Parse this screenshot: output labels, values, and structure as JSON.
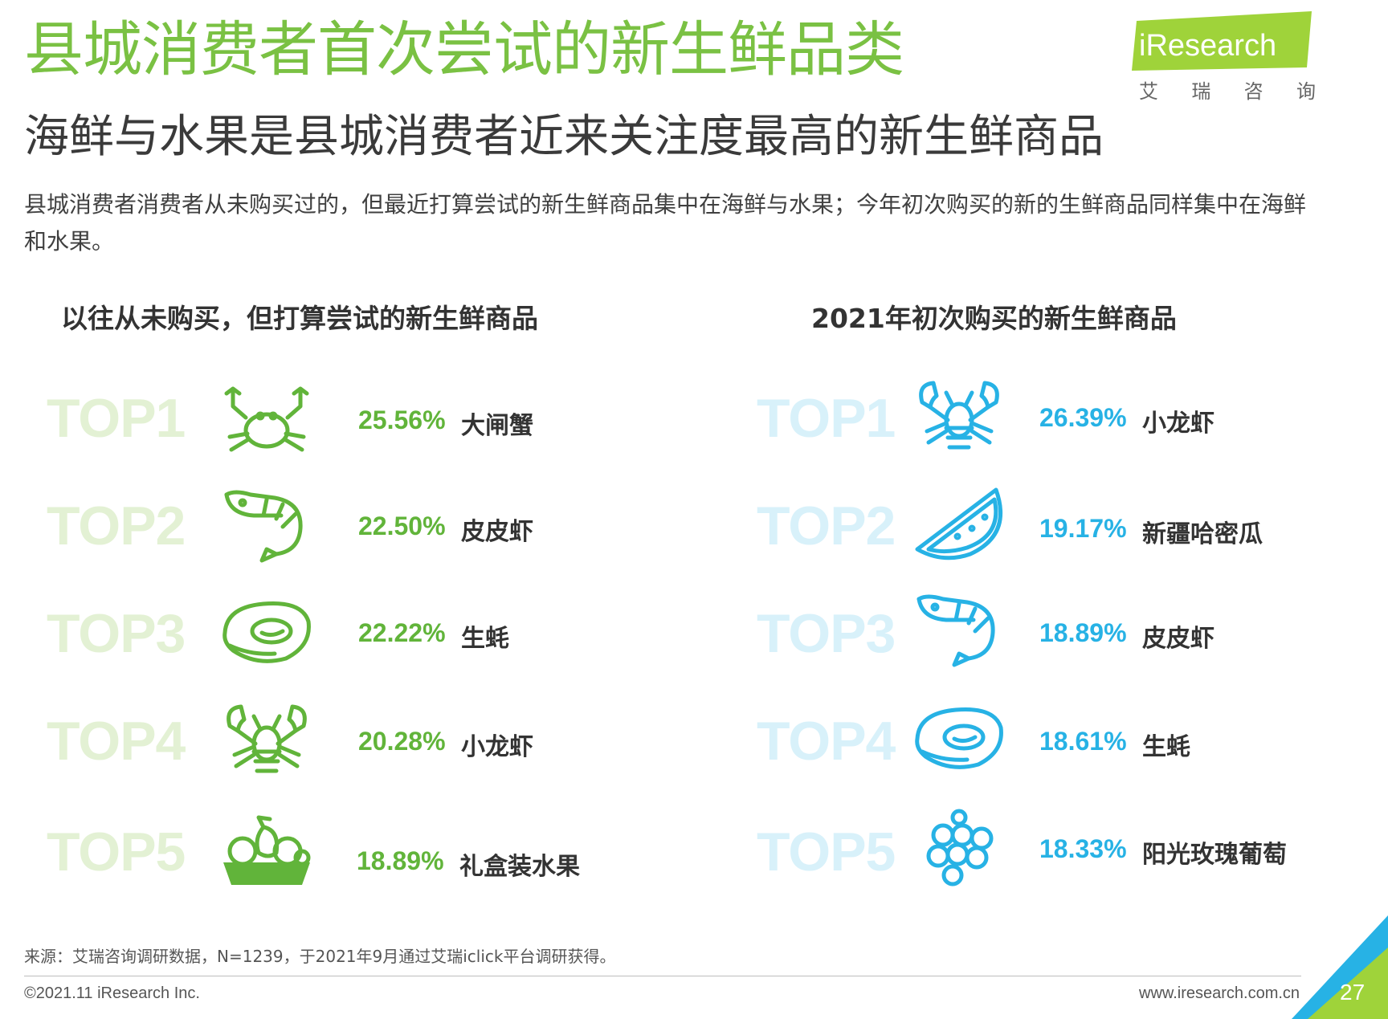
{
  "header": {
    "title": "县城消费者首次尝试的新生鲜品类",
    "subtitle": "海鲜与水果是县城消费者近来关注度最高的新生鲜商品",
    "description": "县城消费者消费者从未购买过的，但最近打算尝试的新生鲜商品集中在海鲜与水果；今年初次购买的新的生鲜商品同样集中在海鲜和水果。"
  },
  "logo": {
    "wordmark": "iResearch",
    "cn_chars": [
      "艾",
      "瑞",
      "咨",
      "询"
    ],
    "colors": {
      "green": "#9fd33a",
      "dark_green": "#7ac143"
    }
  },
  "left": {
    "title": "以往从未购买，但打算尝试的新生鲜商品",
    "accent": "#61b43a",
    "items": [
      {
        "rank": "TOP1",
        "percent": "25.56%",
        "name": "大闸蟹",
        "icon": "crab-icon"
      },
      {
        "rank": "TOP2",
        "percent": "22.50%",
        "name": "皮皮虾",
        "icon": "shrimp-icon"
      },
      {
        "rank": "TOP3",
        "percent": "22.22%",
        "name": "生蚝",
        "icon": "oyster-icon"
      },
      {
        "rank": "TOP4",
        "percent": "20.28%",
        "name": "小龙虾",
        "icon": "crayfish-icon"
      },
      {
        "rank": "TOP5",
        "percent": "18.89%",
        "name": "礼盒装水果",
        "icon": "fruit-basket-icon"
      }
    ]
  },
  "right": {
    "title": "2021年初次购买的新生鲜商品",
    "accent": "#27b2e5",
    "items": [
      {
        "rank": "TOP1",
        "percent": "26.39%",
        "name": "小龙虾",
        "icon": "crayfish-icon"
      },
      {
        "rank": "TOP2",
        "percent": "19.17%",
        "name": "新疆哈密瓜",
        "icon": "melon-slice-icon"
      },
      {
        "rank": "TOP3",
        "percent": "18.89%",
        "name": "皮皮虾",
        "icon": "shrimp-icon"
      },
      {
        "rank": "TOP4",
        "percent": "18.61%",
        "name": "生蚝",
        "icon": "oyster-icon"
      },
      {
        "rank": "TOP5",
        "percent": "18.33%",
        "name": "阳光玫瑰葡萄",
        "icon": "grapes-icon"
      }
    ]
  },
  "footer": {
    "source": "来源：艾瑞咨询调研数据，N=1239，于2021年9月通过艾瑞iclick平台调研获得。",
    "copyright": "©2021.11 iResearch Inc.",
    "website": "www.iresearch.com.cn",
    "page_number": "27"
  }
}
